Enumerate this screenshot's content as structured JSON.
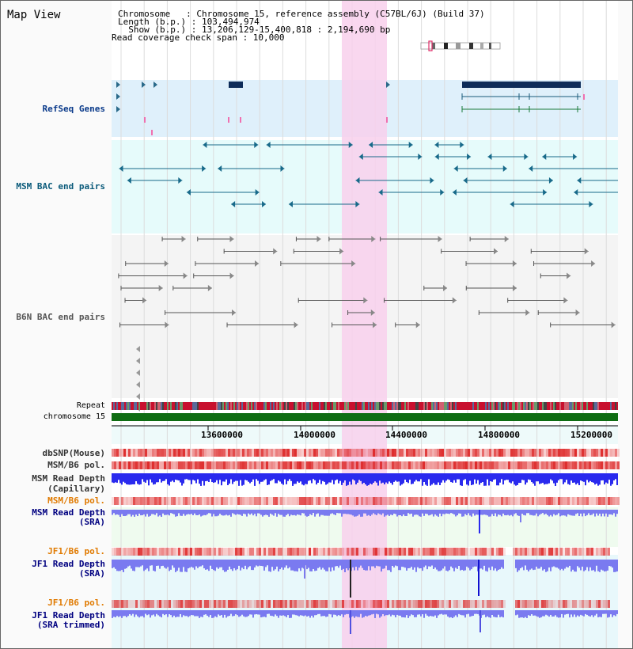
{
  "header": {
    "title": "Map View",
    "chromosome_line": "Chromosome   : Chromosome 15, reference assembly (C57BL/6J) (Build 37)",
    "length_line": "Length (b.p.) : 103,494,974",
    "show_line": "  Show (b.p.) : 13,206,129-15,400,818 : 2,194,690 bp",
    "coverage_line": "Read coverage check span : 10,000"
  },
  "tracks": {
    "refseq": "RefSeq Genes",
    "msm_bac": "MSM BAC end pairs",
    "b6n_bac": "B6N BAC end pairs",
    "repeat": "Repeat",
    "chromosome": "chromosome 15",
    "dbsnp": "dbSNP(Mouse)",
    "msm_b6_pol_1": "MSM/B6 pol.",
    "msm_depth_cap_1": "MSM Read Depth",
    "msm_depth_cap_2": "(Capillary)",
    "msm_b6_pol_2": "MSM/B6 pol.",
    "msm_depth_sra_1": "MSM Read Depth",
    "msm_depth_sra_2": "(SRA)",
    "jf1_b6_pol_1": "JF1/B6 pol.",
    "jf1_depth_sra_1": "JF1 Read Depth",
    "jf1_depth_sra_2": "(SRA)",
    "jf1_b6_pol_2": "JF1/B6 pol.",
    "jf1_depth_trim_1": "JF1 Read Depth",
    "jf1_depth_trim_2": "(SRA trimmed)"
  },
  "axis": {
    "ticks": [
      "13600000",
      "14000000",
      "14400000",
      "14800000",
      "15200000"
    ]
  },
  "colors": {
    "highlight": "#f8d0ec",
    "refseq_bg": "#dff0fb",
    "msm_bg": "#e6fbfb",
    "gene_dark": "#0d2c59",
    "msm_line": "#186a8a",
    "b6n_line": "#555555",
    "chrom_green": "#0f6d13",
    "depth_blue": "#2a2aee",
    "depth_light": "#7a7af0",
    "msm_label": "#0a3a8a",
    "pol_label": "#e07a00",
    "dark_label": "#000080"
  }
}
